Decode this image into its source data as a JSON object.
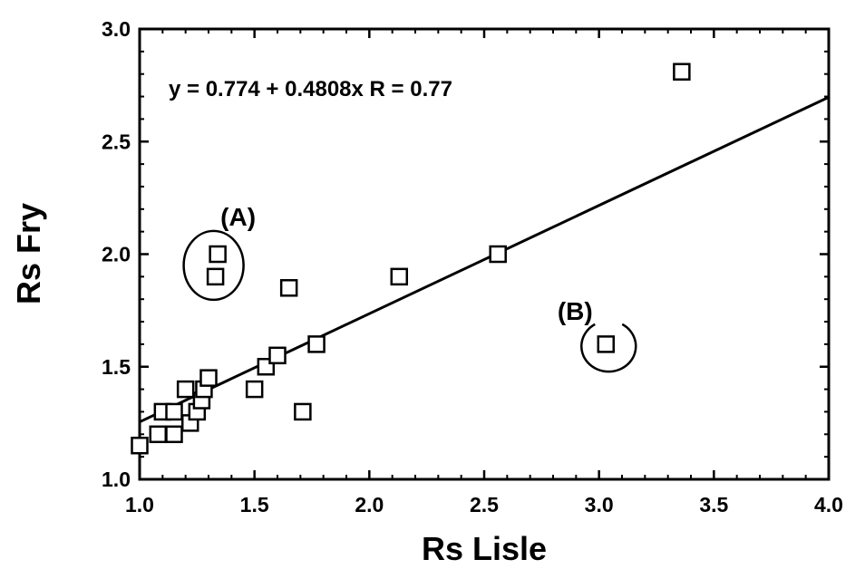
{
  "chart_data": {
    "type": "scatter",
    "xlabel": "Rs  Lisle",
    "ylabel": "Rs  Fry",
    "xlim": [
      1.0,
      4.0
    ],
    "ylim": [
      1.0,
      3.0
    ],
    "xticks": [
      "1.0",
      "1.5",
      "2.0",
      "2.5",
      "3.0",
      "3.5",
      "4.0"
    ],
    "yticks": [
      "1.0",
      "1.5",
      "2.0",
      "2.5",
      "3.0"
    ],
    "grid": false,
    "legend": "none",
    "marker": "open-square",
    "points": [
      {
        "x": 1.0,
        "y": 1.15
      },
      {
        "x": 1.08,
        "y": 1.2
      },
      {
        "x": 1.1,
        "y": 1.3
      },
      {
        "x": 1.15,
        "y": 1.2
      },
      {
        "x": 1.15,
        "y": 1.3
      },
      {
        "x": 1.2,
        "y": 1.4
      },
      {
        "x": 1.22,
        "y": 1.25
      },
      {
        "x": 1.25,
        "y": 1.3
      },
      {
        "x": 1.27,
        "y": 1.35
      },
      {
        "x": 1.28,
        "y": 1.4
      },
      {
        "x": 1.3,
        "y": 1.45
      },
      {
        "x": 1.34,
        "y": 2.0
      },
      {
        "x": 1.33,
        "y": 1.9
      },
      {
        "x": 1.5,
        "y": 1.4
      },
      {
        "x": 1.55,
        "y": 1.5
      },
      {
        "x": 1.6,
        "y": 1.55
      },
      {
        "x": 1.65,
        "y": 1.85
      },
      {
        "x": 1.71,
        "y": 1.3
      },
      {
        "x": 1.77,
        "y": 1.6
      },
      {
        "x": 2.13,
        "y": 1.9
      },
      {
        "x": 2.56,
        "y": 2.0
      },
      {
        "x": 3.03,
        "y": 1.6
      },
      {
        "x": 3.36,
        "y": 2.81
      }
    ],
    "fit_line": {
      "intercept": 0.774,
      "slope": 0.4808,
      "x_range": [
        1.0,
        4.0
      ]
    },
    "annotations": {
      "equation": "y = 0.774 + 0.4808x    R = 0.77",
      "group_a": {
        "label": "(A)",
        "center": {
          "x": 1.33,
          "y": 1.95
        }
      },
      "group_b": {
        "label": "(B)",
        "center": {
          "x": 3.03,
          "y": 1.6
        }
      }
    }
  }
}
